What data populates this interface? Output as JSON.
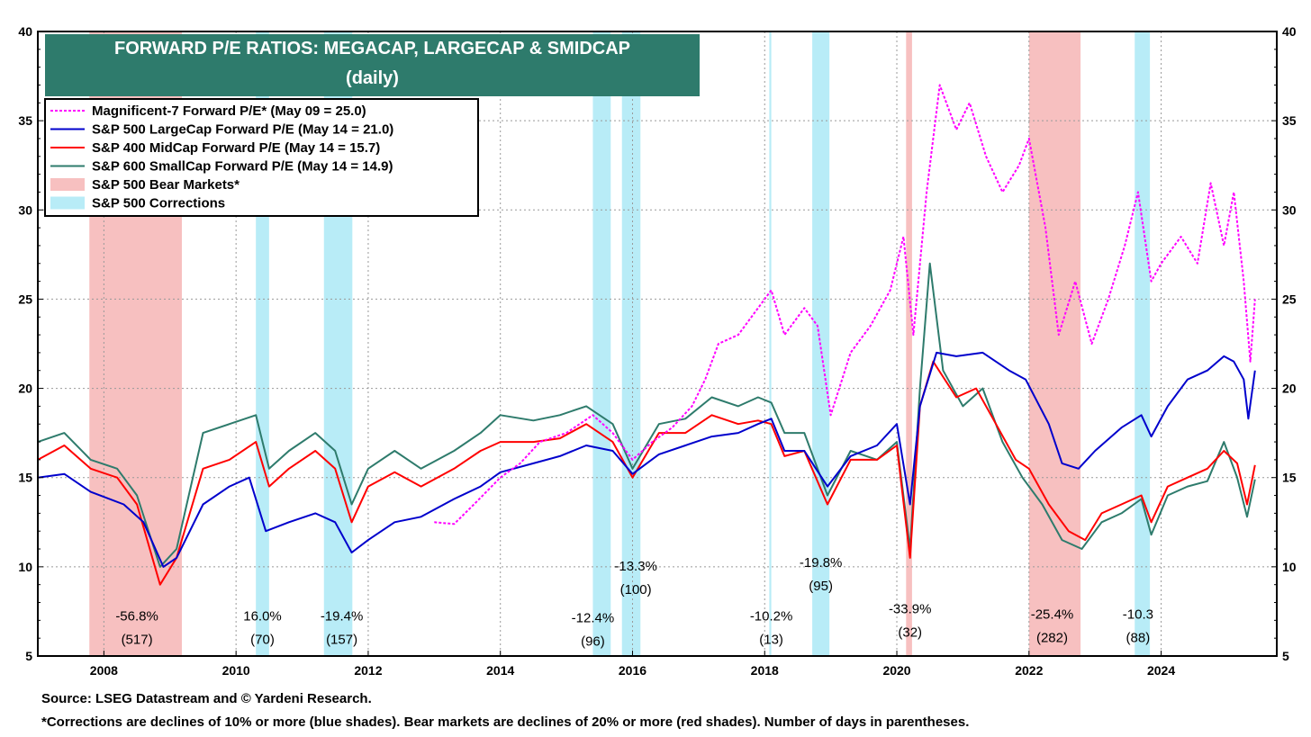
{
  "chart_data": {
    "type": "line",
    "title": "FORWARD P/E RATIOS: MEGACAP, LARGECAP & SMIDCAP",
    "subtitle": "(daily)",
    "xlim": [
      2007.0,
      2025.75
    ],
    "ylim": [
      5,
      40
    ],
    "x_ticks": [
      "2008",
      "2010",
      "2012",
      "2014",
      "2016",
      "2018",
      "2020",
      "2022",
      "2024"
    ],
    "y_ticks": [
      "5",
      "10",
      "15",
      "20",
      "25",
      "30",
      "35",
      "40"
    ],
    "grid": true,
    "legend_position": "top-left",
    "series": [
      {
        "name": "Magnificent-7 Forward P/E* (May 09 = 25.0)",
        "color": "#ff00ff",
        "dash": "3,2",
        "points": [
          [
            2013.0,
            12.5
          ],
          [
            2013.3,
            12.4
          ],
          [
            2013.6,
            13.5
          ],
          [
            2014.0,
            15.0
          ],
          [
            2014.3,
            15.8
          ],
          [
            2014.6,
            17.0
          ],
          [
            2015.0,
            17.5
          ],
          [
            2015.4,
            18.5
          ],
          [
            2015.7,
            17.5
          ],
          [
            2016.0,
            16.0
          ],
          [
            2016.3,
            17.0
          ],
          [
            2016.6,
            17.8
          ],
          [
            2016.9,
            19.0
          ],
          [
            2017.1,
            20.5
          ],
          [
            2017.3,
            22.5
          ],
          [
            2017.6,
            23.0
          ],
          [
            2017.9,
            24.5
          ],
          [
            2018.1,
            25.5
          ],
          [
            2018.3,
            23.0
          ],
          [
            2018.6,
            24.5
          ],
          [
            2018.8,
            23.5
          ],
          [
            2019.0,
            18.5
          ],
          [
            2019.3,
            22.0
          ],
          [
            2019.6,
            23.5
          ],
          [
            2019.9,
            25.5
          ],
          [
            2020.1,
            28.5
          ],
          [
            2020.25,
            23.0
          ],
          [
            2020.45,
            31.0
          ],
          [
            2020.65,
            37.0
          ],
          [
            2020.9,
            34.5
          ],
          [
            2021.1,
            36.0
          ],
          [
            2021.35,
            33.0
          ],
          [
            2021.6,
            31.0
          ],
          [
            2021.85,
            32.5
          ],
          [
            2022.0,
            34.0
          ],
          [
            2022.25,
            29.0
          ],
          [
            2022.45,
            23.0
          ],
          [
            2022.7,
            26.0
          ],
          [
            2022.95,
            22.5
          ],
          [
            2023.2,
            25.0
          ],
          [
            2023.45,
            28.0
          ],
          [
            2023.65,
            31.0
          ],
          [
            2023.85,
            26.0
          ],
          [
            2024.0,
            27.0
          ],
          [
            2024.3,
            28.5
          ],
          [
            2024.55,
            27.0
          ],
          [
            2024.75,
            31.5
          ],
          [
            2024.95,
            28.0
          ],
          [
            2025.1,
            31.0
          ],
          [
            2025.25,
            26.0
          ],
          [
            2025.35,
            21.5
          ],
          [
            2025.42,
            25.0
          ]
        ]
      },
      {
        "name": "S&P 500 LargeCap Forward P/E (May 14 = 21.0)",
        "color": "#0000cc",
        "dash": "",
        "points": [
          [
            2007.0,
            15.0
          ],
          [
            2007.4,
            15.2
          ],
          [
            2007.8,
            14.2
          ],
          [
            2008.3,
            13.5
          ],
          [
            2008.6,
            12.5
          ],
          [
            2008.9,
            10.0
          ],
          [
            2009.1,
            10.5
          ],
          [
            2009.5,
            13.5
          ],
          [
            2009.9,
            14.5
          ],
          [
            2010.2,
            15.0
          ],
          [
            2010.45,
            12.0
          ],
          [
            2010.8,
            12.5
          ],
          [
            2011.2,
            13.0
          ],
          [
            2011.5,
            12.5
          ],
          [
            2011.75,
            10.8
          ],
          [
            2012.0,
            11.5
          ],
          [
            2012.4,
            12.5
          ],
          [
            2012.8,
            12.8
          ],
          [
            2013.3,
            13.8
          ],
          [
            2013.7,
            14.5
          ],
          [
            2014.0,
            15.3
          ],
          [
            2014.5,
            15.8
          ],
          [
            2014.9,
            16.2
          ],
          [
            2015.3,
            16.8
          ],
          [
            2015.7,
            16.5
          ],
          [
            2016.0,
            15.2
          ],
          [
            2016.4,
            16.3
          ],
          [
            2016.8,
            16.8
          ],
          [
            2017.2,
            17.3
          ],
          [
            2017.6,
            17.5
          ],
          [
            2017.9,
            18.0
          ],
          [
            2018.1,
            18.3
          ],
          [
            2018.3,
            16.5
          ],
          [
            2018.6,
            16.5
          ],
          [
            2018.95,
            14.5
          ],
          [
            2019.3,
            16.2
          ],
          [
            2019.7,
            16.8
          ],
          [
            2020.0,
            18.0
          ],
          [
            2020.2,
            13.5
          ],
          [
            2020.35,
            19.0
          ],
          [
            2020.6,
            22.0
          ],
          [
            2020.9,
            21.8
          ],
          [
            2021.3,
            22.0
          ],
          [
            2021.7,
            21.0
          ],
          [
            2021.95,
            20.5
          ],
          [
            2022.3,
            18.0
          ],
          [
            2022.5,
            15.8
          ],
          [
            2022.75,
            15.5
          ],
          [
            2023.0,
            16.5
          ],
          [
            2023.4,
            17.8
          ],
          [
            2023.7,
            18.5
          ],
          [
            2023.85,
            17.3
          ],
          [
            2024.1,
            19.0
          ],
          [
            2024.4,
            20.5
          ],
          [
            2024.7,
            21.0
          ],
          [
            2024.95,
            21.8
          ],
          [
            2025.1,
            21.5
          ],
          [
            2025.25,
            20.5
          ],
          [
            2025.32,
            18.3
          ],
          [
            2025.42,
            21.0
          ]
        ]
      },
      {
        "name": "S&P 400 MidCap Forward P/E (May 14 = 15.7)",
        "color": "#ff0000",
        "dash": "",
        "points": [
          [
            2007.0,
            16.0
          ],
          [
            2007.4,
            16.8
          ],
          [
            2007.8,
            15.5
          ],
          [
            2008.2,
            15.0
          ],
          [
            2008.5,
            13.5
          ],
          [
            2008.85,
            9.0
          ],
          [
            2009.1,
            10.5
          ],
          [
            2009.5,
            15.5
          ],
          [
            2009.9,
            16.0
          ],
          [
            2010.3,
            17.0
          ],
          [
            2010.5,
            14.5
          ],
          [
            2010.8,
            15.5
          ],
          [
            2011.2,
            16.5
          ],
          [
            2011.5,
            15.5
          ],
          [
            2011.75,
            12.5
          ],
          [
            2012.0,
            14.5
          ],
          [
            2012.4,
            15.3
          ],
          [
            2012.8,
            14.5
          ],
          [
            2013.3,
            15.5
          ],
          [
            2013.7,
            16.5
          ],
          [
            2014.0,
            17.0
          ],
          [
            2014.5,
            17.0
          ],
          [
            2014.9,
            17.2
          ],
          [
            2015.3,
            18.0
          ],
          [
            2015.7,
            17.0
          ],
          [
            2016.0,
            15.0
          ],
          [
            2016.4,
            17.5
          ],
          [
            2016.8,
            17.5
          ],
          [
            2017.2,
            18.5
          ],
          [
            2017.6,
            18.0
          ],
          [
            2017.9,
            18.2
          ],
          [
            2018.1,
            18.0
          ],
          [
            2018.3,
            16.2
          ],
          [
            2018.6,
            16.5
          ],
          [
            2018.95,
            13.5
          ],
          [
            2019.3,
            16.0
          ],
          [
            2019.7,
            16.0
          ],
          [
            2020.0,
            16.8
          ],
          [
            2020.2,
            10.5
          ],
          [
            2020.35,
            19.0
          ],
          [
            2020.55,
            21.5
          ],
          [
            2020.9,
            19.5
          ],
          [
            2021.2,
            20.0
          ],
          [
            2021.5,
            18.0
          ],
          [
            2021.8,
            16.0
          ],
          [
            2022.0,
            15.5
          ],
          [
            2022.3,
            13.5
          ],
          [
            2022.6,
            12.0
          ],
          [
            2022.85,
            11.5
          ],
          [
            2023.1,
            13.0
          ],
          [
            2023.4,
            13.5
          ],
          [
            2023.7,
            14.0
          ],
          [
            2023.85,
            12.5
          ],
          [
            2024.1,
            14.5
          ],
          [
            2024.4,
            15.0
          ],
          [
            2024.7,
            15.5
          ],
          [
            2024.95,
            16.5
          ],
          [
            2025.15,
            15.8
          ],
          [
            2025.3,
            13.5
          ],
          [
            2025.42,
            15.7
          ]
        ]
      },
      {
        "name": "S&P 600 SmallCap Forward P/E (May 14 = 14.9)",
        "color": "#2e7b6c",
        "dash": "",
        "points": [
          [
            2007.0,
            17.0
          ],
          [
            2007.4,
            17.5
          ],
          [
            2007.8,
            16.0
          ],
          [
            2008.2,
            15.5
          ],
          [
            2008.5,
            14.0
          ],
          [
            2008.85,
            10.0
          ],
          [
            2009.1,
            11.0
          ],
          [
            2009.5,
            17.5
          ],
          [
            2009.9,
            18.0
          ],
          [
            2010.3,
            18.5
          ],
          [
            2010.5,
            15.5
          ],
          [
            2010.8,
            16.5
          ],
          [
            2011.2,
            17.5
          ],
          [
            2011.5,
            16.5
          ],
          [
            2011.75,
            13.5
          ],
          [
            2012.0,
            15.5
          ],
          [
            2012.4,
            16.5
          ],
          [
            2012.8,
            15.5
          ],
          [
            2013.3,
            16.5
          ],
          [
            2013.7,
            17.5
          ],
          [
            2014.0,
            18.5
          ],
          [
            2014.5,
            18.2
          ],
          [
            2014.9,
            18.5
          ],
          [
            2015.3,
            19.0
          ],
          [
            2015.7,
            18.0
          ],
          [
            2016.0,
            15.5
          ],
          [
            2016.4,
            18.0
          ],
          [
            2016.8,
            18.3
          ],
          [
            2017.2,
            19.5
          ],
          [
            2017.6,
            19.0
          ],
          [
            2017.9,
            19.5
          ],
          [
            2018.1,
            19.2
          ],
          [
            2018.3,
            17.5
          ],
          [
            2018.6,
            17.5
          ],
          [
            2018.95,
            14.0
          ],
          [
            2019.3,
            16.5
          ],
          [
            2019.7,
            16.0
          ],
          [
            2020.0,
            17.0
          ],
          [
            2020.2,
            11.0
          ],
          [
            2020.35,
            20.0
          ],
          [
            2020.5,
            27.0
          ],
          [
            2020.7,
            21.0
          ],
          [
            2021.0,
            19.0
          ],
          [
            2021.3,
            20.0
          ],
          [
            2021.6,
            17.0
          ],
          [
            2021.9,
            15.0
          ],
          [
            2022.2,
            13.5
          ],
          [
            2022.5,
            11.5
          ],
          [
            2022.8,
            11.0
          ],
          [
            2023.1,
            12.5
          ],
          [
            2023.4,
            13.0
          ],
          [
            2023.7,
            13.8
          ],
          [
            2023.85,
            11.8
          ],
          [
            2024.1,
            14.0
          ],
          [
            2024.4,
            14.5
          ],
          [
            2024.7,
            14.8
          ],
          [
            2024.95,
            17.0
          ],
          [
            2025.15,
            15.0
          ],
          [
            2025.3,
            12.8
          ],
          [
            2025.42,
            14.9
          ]
        ]
      }
    ],
    "bear_markets": [
      {
        "start": 2007.78,
        "end": 2009.18,
        "pct": "-56.8%",
        "days": "(517)"
      },
      {
        "start": 2020.14,
        "end": 2020.23,
        "pct": "-33.9%",
        "days": "(32)"
      },
      {
        "start": 2022.0,
        "end": 2022.78,
        "pct": "-25.4%",
        "days": "(282)"
      }
    ],
    "corrections": [
      {
        "start": 2010.3,
        "end": 2010.5,
        "pct": "16.0%",
        "days": "(70)"
      },
      {
        "start": 2011.33,
        "end": 2011.76,
        "pct": "-19.4%",
        "days": "(157)"
      },
      {
        "start": 2015.4,
        "end": 2015.67,
        "pct": "-12.4%",
        "days": "(96)"
      },
      {
        "start": 2015.84,
        "end": 2016.12,
        "pct": "-13.3%",
        "days": "(100)"
      },
      {
        "start": 2018.07,
        "end": 2018.1,
        "pct": "-10.2%",
        "days": "(13)"
      },
      {
        "start": 2018.72,
        "end": 2018.98,
        "pct": "-19.8%",
        "days": "(95)"
      },
      {
        "start": 2023.6,
        "end": 2023.83,
        "pct": "-10.3",
        "days": "(88)"
      }
    ],
    "annotations": [
      {
        "pct": "-56.8%",
        "days": "(517)",
        "x": 2008.5,
        "y": 7.0
      },
      {
        "pct": "16.0%",
        "days": "(70)",
        "x": 2010.4,
        "y": 7.0
      },
      {
        "pct": "-19.4%",
        "days": "(157)",
        "x": 2011.6,
        "y": 7.0
      },
      {
        "pct": "-12.4%",
        "days": "(96)",
        "x": 2015.4,
        "y": 6.9
      },
      {
        "pct": "-13.3%",
        "days": "(100)",
        "x": 2016.05,
        "y": 9.8
      },
      {
        "pct": "-10.2%",
        "days": "(13)",
        "x": 2018.1,
        "y": 7.0
      },
      {
        "pct": "-19.8%",
        "days": "(95)",
        "x": 2018.85,
        "y": 10.0
      },
      {
        "pct": "-33.9%",
        "days": "(32)",
        "x": 2020.2,
        "y": 7.4
      },
      {
        "pct": "-25.4%",
        "days": "(282)",
        "x": 2022.35,
        "y": 7.1
      },
      {
        "pct": "-10.3",
        "days": "(88)",
        "x": 2023.65,
        "y": 7.1
      }
    ],
    "legend": [
      {
        "label": "Magnificent-7 Forward P/E* (May 09 = 25.0)",
        "color": "#ff00ff",
        "kind": "dotted"
      },
      {
        "label": "S&P 500 LargeCap Forward P/E (May 14 = 21.0)",
        "color": "#0000cc",
        "kind": "line"
      },
      {
        "label": "S&P 400 MidCap Forward P/E (May 14 = 15.7)",
        "color": "#ff0000",
        "kind": "line"
      },
      {
        "label": "S&P 600 SmallCap Forward P/E (May 14 = 14.9)",
        "color": "#2e7b6c",
        "kind": "line"
      },
      {
        "label": "S&P 500 Bear Markets*",
        "color": "#f7c0c0",
        "kind": "box"
      },
      {
        "label": "S&P 500 Corrections",
        "color": "#b8ecf7",
        "kind": "box"
      }
    ]
  },
  "footer": {
    "source": "Source: LSEG Datastream and © Yardeni Research.",
    "note": "*Corrections are declines of 10% or more (blue shades). Bear markets are declines of 20% or more (red shades). Number of days in parentheses."
  }
}
